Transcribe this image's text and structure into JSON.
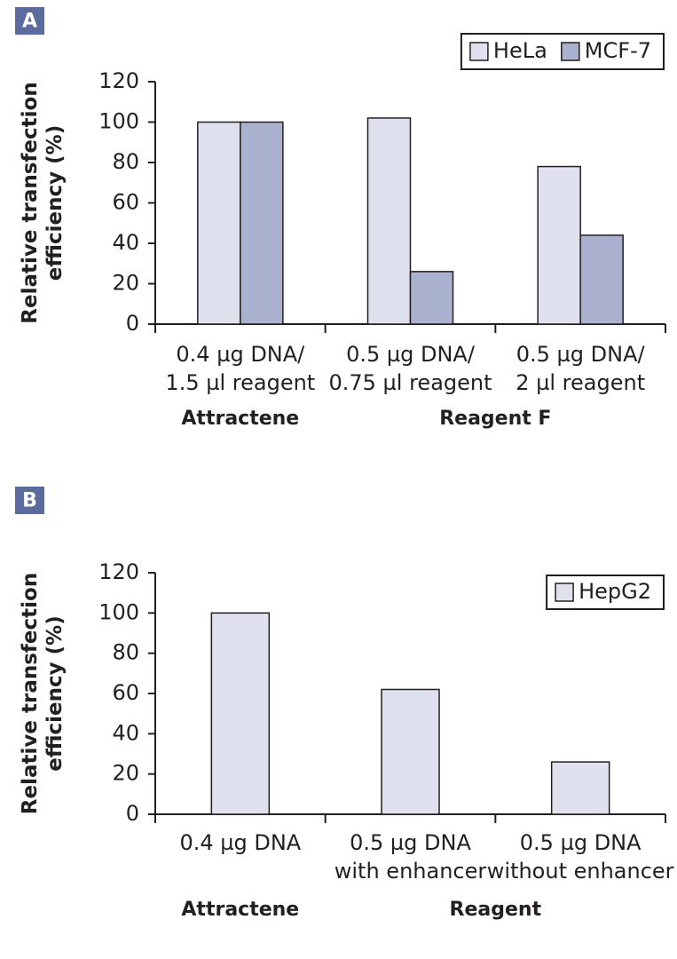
{
  "chart_data": [
    {
      "type": "bar",
      "panel": "A",
      "ylabel": [
        "Relative transfection",
        "efficiency (%)"
      ],
      "categories": [
        [
          "0.4 µg DNA/",
          "1.5 µl reagent"
        ],
        [
          "0.5 µg DNA/",
          "0.75 µl reagent"
        ],
        [
          "0.5 µg DNA/",
          "2 µl reagent"
        ]
      ],
      "groups": [
        "Attractene",
        "Reagent F"
      ],
      "series": [
        {
          "name": "HeLa",
          "color": "#e0e1ef",
          "values": [
            100,
            102,
            78
          ]
        },
        {
          "name": "MCF-7",
          "color": "#aab1cf",
          "values": [
            100,
            26,
            44
          ]
        }
      ],
      "ylim": [
        0,
        120
      ],
      "yticks": [
        0,
        20,
        40,
        60,
        80,
        100,
        120
      ],
      "legend": "top-right"
    },
    {
      "type": "bar",
      "panel": "B",
      "ylabel": [
        "Relative transfection",
        "efficiency (%)"
      ],
      "categories": [
        [
          "0.4 µg DNA"
        ],
        [
          "0.5 µg DNA",
          "with enhancer"
        ],
        [
          "0.5 µg DNA",
          "without enhancer"
        ]
      ],
      "groups": [
        "Attractene",
        "Reagent"
      ],
      "series": [
        {
          "name": "HepG2",
          "color": "#e0e1ef",
          "values": [
            100,
            62,
            26
          ]
        }
      ],
      "ylim": [
        0,
        120
      ],
      "yticks": [
        0,
        20,
        40,
        60,
        80,
        100,
        120
      ],
      "legend": "top-right"
    }
  ]
}
